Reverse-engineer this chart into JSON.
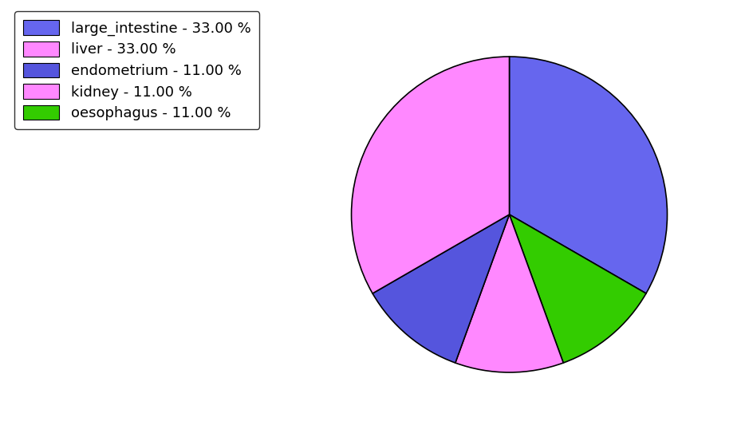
{
  "labels": [
    "large_intestine",
    "oesophagus",
    "kidney",
    "endometrium",
    "liver"
  ],
  "values": [
    33.0,
    11.0,
    11.0,
    11.0,
    33.0
  ],
  "colors": [
    "#6666ee",
    "#33cc00",
    "#ff88ff",
    "#5555dd",
    "#ff88ff"
  ],
  "legend_labels": [
    "large_intestine - 33.00 %",
    "liver - 33.00 %",
    "endometrium - 11.00 %",
    "kidney - 11.00 %",
    "oesophagus - 11.00 %"
  ],
  "legend_colors": [
    "#6666ee",
    "#ff88ff",
    "#5555dd",
    "#ff88ff",
    "#33cc00"
  ],
  "figsize": [
    9.39,
    5.38
  ],
  "dpi": 100
}
